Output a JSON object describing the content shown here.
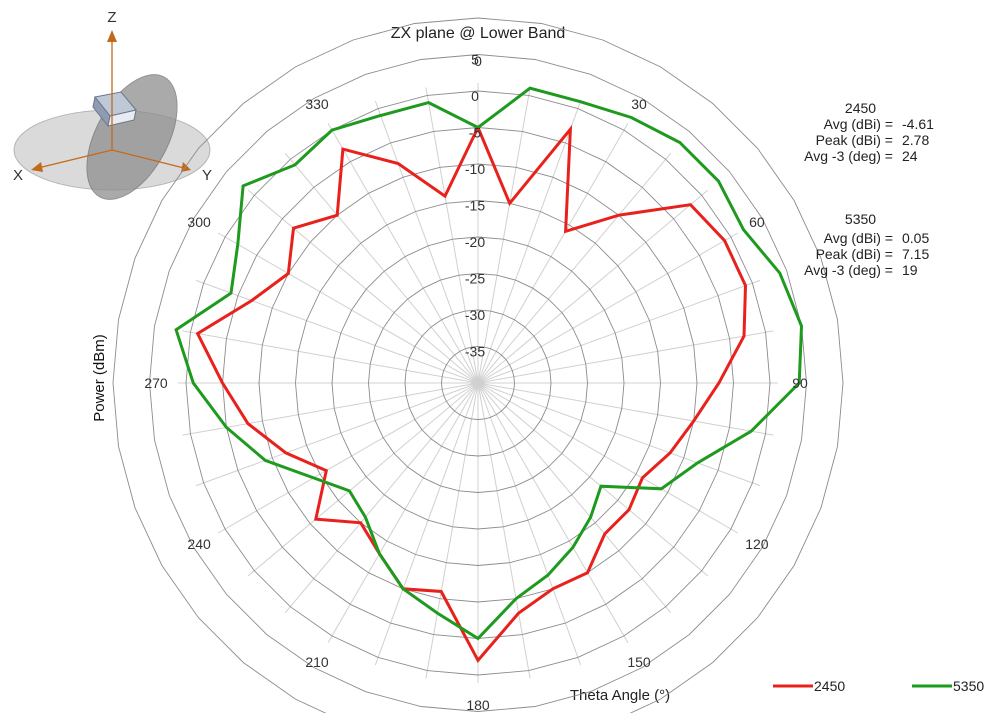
{
  "chart_data": {
    "type": "polar-line",
    "title": "ZX plane @ Lower Band",
    "xlabel": "Theta Angle (°)",
    "ylabel": "Power (dBm)",
    "radial_range": [
      -40,
      10
    ],
    "radial_ticks": [
      5,
      0,
      -5,
      -10,
      -15,
      -20,
      -25,
      -30,
      -35
    ],
    "angle_ticks": [
      "0",
      "30",
      "60",
      "90",
      "120",
      "150",
      "180",
      "210",
      "240",
      "270",
      "300",
      "330"
    ],
    "angle_step_deg": 10,
    "grid": true,
    "legend_position": "bottom-right",
    "series": [
      {
        "name": "2450",
        "color": "#e8211c",
        "angles": [
          0,
          10,
          20,
          30,
          40,
          50,
          60,
          70,
          80,
          90,
          100,
          110,
          120,
          130,
          140,
          150,
          160,
          170,
          180,
          190,
          200,
          210,
          220,
          230,
          240,
          250,
          260,
          270,
          280,
          290,
          300,
          310,
          320,
          330,
          340,
          350
        ],
        "values": [
          -5,
          -15,
          -3,
          -16,
          -10,
          -2,
          -1,
          -1,
          -3,
          -7,
          -10,
          -12,
          -14,
          -13,
          -13,
          -10,
          -10,
          -8,
          -2,
          -11,
          -10,
          -13,
          -15,
          -11,
          -16,
          -12,
          -8,
          -5,
          -1,
          -7,
          -10,
          -7,
          -10,
          -3,
          -8,
          -14
        ]
      },
      {
        "name": "5350",
        "color": "#1e9a1e",
        "angles": [
          0,
          10,
          20,
          30,
          40,
          50,
          60,
          70,
          80,
          90,
          100,
          110,
          120,
          130,
          140,
          150,
          160,
          170,
          180,
          190,
          200,
          210,
          220,
          230,
          240,
          250,
          260,
          270,
          280,
          290,
          300,
          310,
          320,
          330,
          340,
          350
        ],
        "values": [
          -5,
          1,
          1,
          2,
          3,
          3,
          2,
          4,
          5,
          4,
          -2,
          -8,
          -11,
          -18,
          -16,
          -14,
          -12,
          -10,
          -5,
          -8,
          -10,
          -13,
          -16,
          -17,
          -14,
          -9,
          -5,
          -1,
          2,
          -4,
          -2,
          2,
          -1,
          0,
          -1,
          -1
        ]
      }
    ]
  },
  "stats": [
    {
      "band": "2450",
      "rows": [
        {
          "label": "Avg (dBi) =",
          "value": "-4.61"
        },
        {
          "label": "Peak (dBi) =",
          "value": "2.78"
        },
        {
          "label": "Avg -3 (deg) =",
          "value": "24"
        }
      ]
    },
    {
      "band": "5350",
      "rows": [
        {
          "label": "Avg (dBi) =",
          "value": "0.05"
        },
        {
          "label": "Peak (dBi) =",
          "value": "7.15"
        },
        {
          "label": "Avg -3 (deg) =",
          "value": "19"
        }
      ]
    }
  ],
  "axes_icon": {
    "z": "Z",
    "x": "X",
    "y": "Y",
    "axis_color": "#c26a1c"
  }
}
